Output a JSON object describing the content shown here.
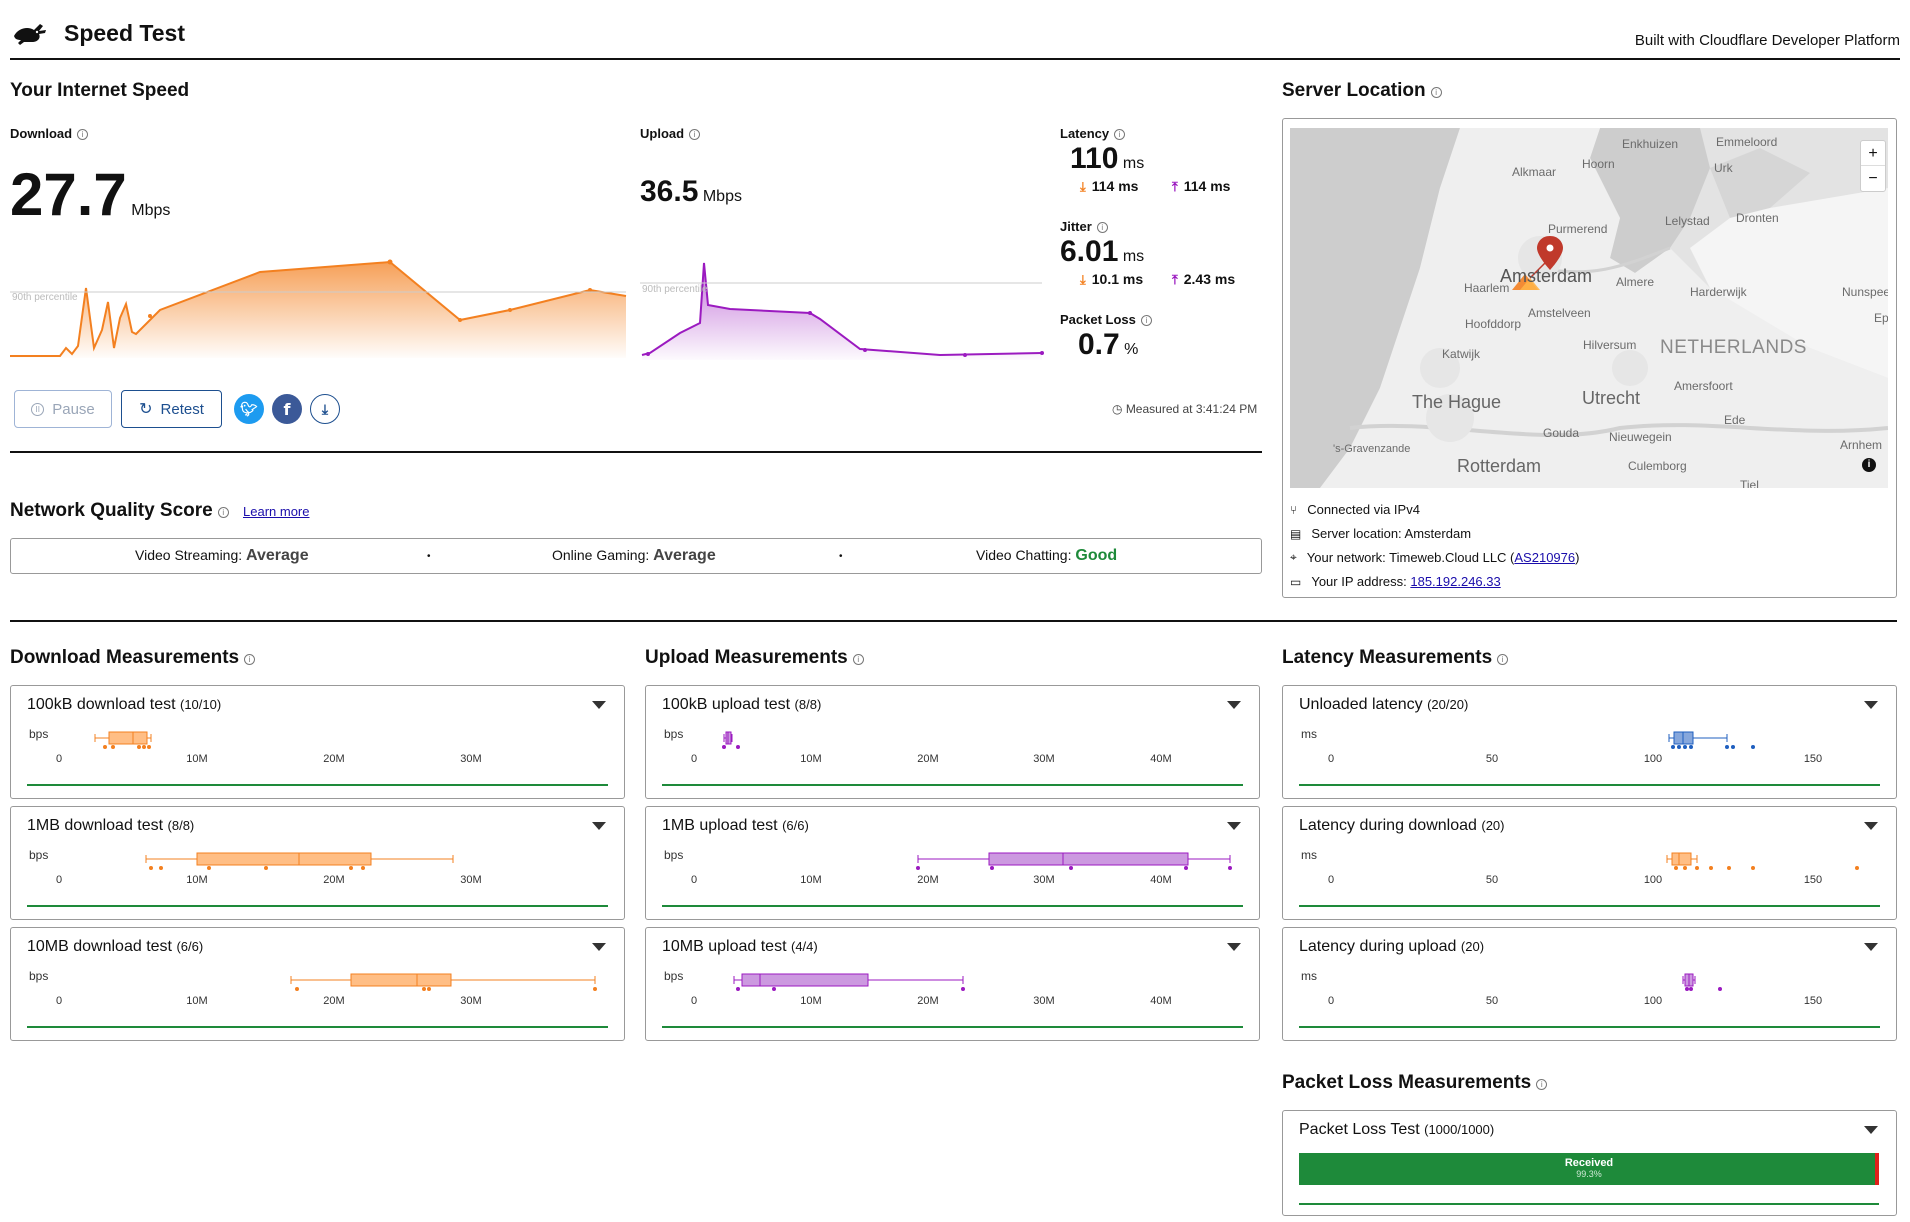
{
  "header": {
    "title": "Speed Test",
    "built_with": "Built with Cloudflare Developer Platform"
  },
  "speed": {
    "section_title": "Your Internet Speed",
    "download": {
      "label": "Download",
      "value": "27.7",
      "unit": "Mbps",
      "percentile_label": "90th percentile"
    },
    "upload": {
      "label": "Upload",
      "value": "36.5",
      "unit": "Mbps",
      "percentile_label": "90th percentile"
    },
    "latency": {
      "label": "Latency",
      "value": "110",
      "unit": "ms",
      "down": "114 ms",
      "up": "114 ms"
    },
    "jitter": {
      "label": "Jitter",
      "value": "6.01",
      "unit": "ms",
      "down": "10.1 ms",
      "up": "2.43 ms"
    },
    "packet_loss": {
      "label": "Packet Loss",
      "value": "0.7",
      "unit": "%"
    },
    "measured_at": "Measured at 3:41:24 PM",
    "buttons": {
      "pause": "Pause",
      "retest": "Retest"
    }
  },
  "quality": {
    "title": "Network Quality Score",
    "learn_more": "Learn more",
    "items": [
      {
        "label": "Video Streaming:",
        "value": "Average"
      },
      {
        "label": "Online Gaming:",
        "value": "Average"
      },
      {
        "label": "Video Chatting:",
        "value": "Good"
      }
    ]
  },
  "server": {
    "title": "Server Location",
    "connected": "Connected via IPv4",
    "location": "Server location: Amsterdam",
    "network_prefix": "Your network: Timeweb.Cloud LLC (",
    "network_link": "AS210976",
    "network_suffix": ")",
    "ip_prefix": "Your IP address: ",
    "ip_link": "185.192.246.33",
    "map_labels": [
      "Enkhuizen",
      "Emmeloord",
      "Hoorn",
      "Alkmaar",
      "Urk",
      "Lelystad",
      "Dronten",
      "Purmerend",
      "Amsterdam",
      "Almere",
      "Haarlem",
      "Harderwijk",
      "Nunspee",
      "Hoofddorp",
      "Amstelveen",
      "Ep",
      "Hilversum",
      "NETHERLANDS",
      "Katwijk",
      "Amersfoort",
      "The Hague",
      "Utrecht",
      "Ede",
      "Gouda",
      "Nieuwegein",
      "'s-Gravenzande",
      "Arnhem",
      "Rotterdam",
      "Culemborg",
      "Tiel"
    ],
    "zoom_in": "+",
    "zoom_out": "−"
  },
  "download_measurements": {
    "title": "Download Measurements",
    "axis_unit": "bps",
    "tick_labels": [
      "0",
      "10M",
      "20M",
      "30M"
    ],
    "tests": [
      {
        "name": "100kB download test",
        "count": "(10/10)"
      },
      {
        "name": "1MB download test",
        "count": "(8/8)"
      },
      {
        "name": "10MB download test",
        "count": "(6/6)"
      }
    ]
  },
  "upload_measurements": {
    "title": "Upload Measurements",
    "axis_unit": "bps",
    "tick_labels": [
      "0",
      "10M",
      "20M",
      "30M",
      "40M"
    ],
    "tests": [
      {
        "name": "100kB upload test",
        "count": "(8/8)"
      },
      {
        "name": "1MB upload test",
        "count": "(6/6)"
      },
      {
        "name": "10MB upload test",
        "count": "(4/4)"
      }
    ]
  },
  "latency_measurements": {
    "title": "Latency Measurements",
    "axis_unit": "ms",
    "tick_labels": [
      "0",
      "50",
      "100",
      "150"
    ],
    "tests": [
      {
        "name": "Unloaded latency",
        "count": "(20/20)"
      },
      {
        "name": "Latency during download",
        "count": "(20)"
      },
      {
        "name": "Latency during upload",
        "count": "(20)"
      }
    ]
  },
  "packet_loss_measurements": {
    "title": "Packet Loss Measurements",
    "test_name": "Packet Loss Test",
    "test_count": "(1000/1000)",
    "bar_label": "Received",
    "bar_value": "99.3%"
  },
  "colors": {
    "download": "#f38020",
    "upload": "#9b1ac0",
    "latency": "#1f5fbf",
    "good": "#1e8a3a",
    "accent_blue": "#1d9bf0"
  }
}
